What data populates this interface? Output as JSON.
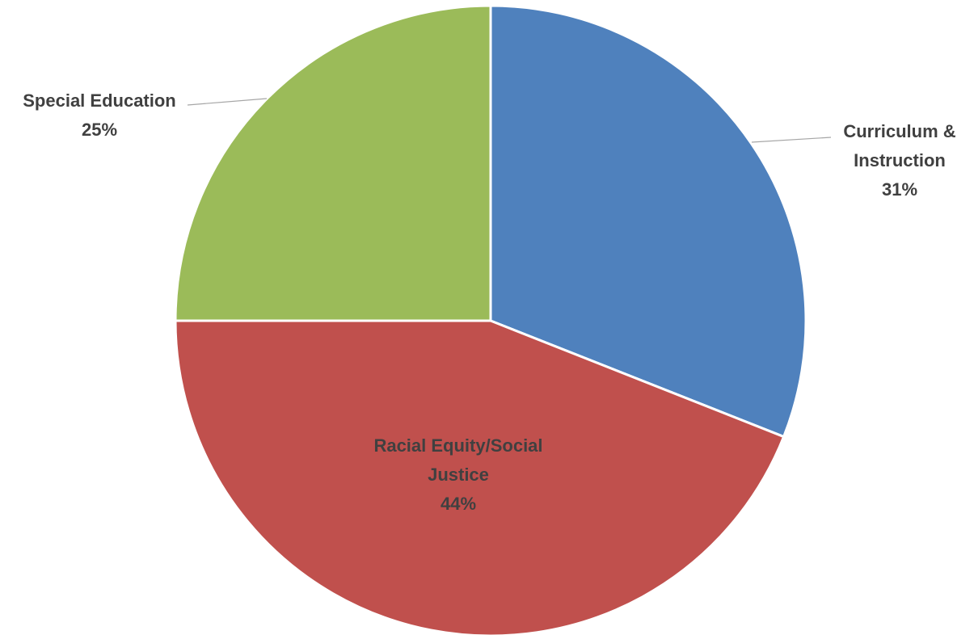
{
  "chart_data": {
    "type": "pie",
    "title": "",
    "start": "12 o'clock, clockwise",
    "slices": [
      {
        "label": "Curriculum & Instruction",
        "label_lines": [
          "Curriculum &",
          "Instruction"
        ],
        "value": 31,
        "display": "31%",
        "color": "#4F81BD",
        "label_position": "outside",
        "leader_line": true
      },
      {
        "label": "Racial Equity/Social Justice",
        "label_lines": [
          "Racial Equity/Social",
          "Justice"
        ],
        "value": 44,
        "display": "44%",
        "color": "#C0504D",
        "label_position": "inside",
        "leader_line": false
      },
      {
        "label": "Special Education",
        "label_lines": [
          "Special Education"
        ],
        "value": 25,
        "display": "25%",
        "color": "#9BBB59",
        "label_position": "outside",
        "leader_line": true
      }
    ]
  }
}
